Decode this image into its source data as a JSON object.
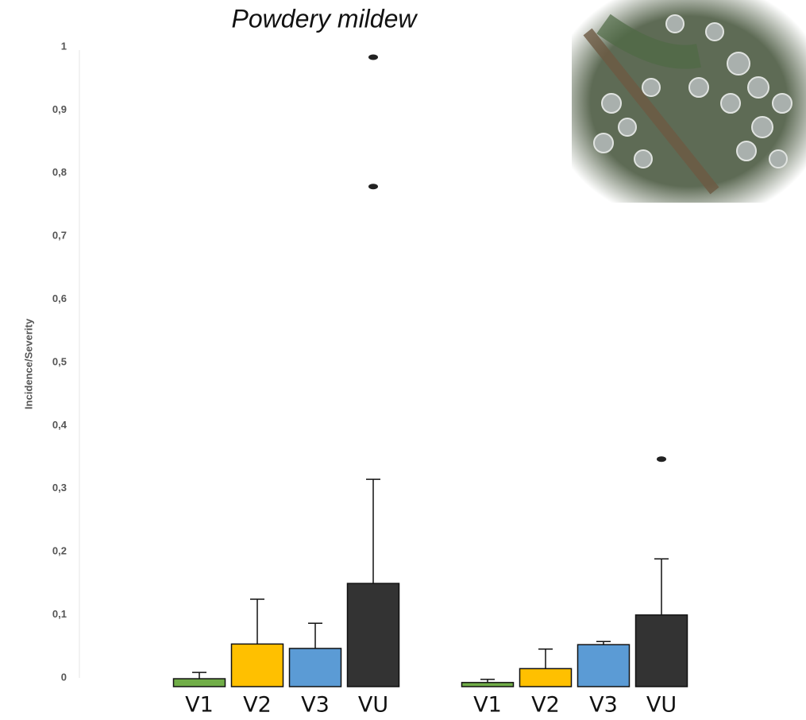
{
  "chart_data": {
    "type": "bar",
    "title": "Powdery mildew",
    "y_label": "Incidence/Severity",
    "ylim": [
      0,
      1
    ],
    "yticks": [
      0,
      {
        "value": 0.1,
        "label": "0,1"
      },
      {
        "value": 0.2,
        "label": "0,2"
      },
      {
        "value": 0.3,
        "label": "0,3"
      },
      {
        "value": 0.4,
        "label": "0,4"
      },
      {
        "value": 0.5,
        "label": "0,5"
      },
      {
        "value": 0.6,
        "label": "0,6"
      },
      {
        "value": 0.7,
        "label": "0,7"
      },
      {
        "value": 0.8,
        "label": "0,8"
      },
      {
        "value": 0.9,
        "label": "0,9"
      },
      1
    ],
    "colors": [
      "#70ad47",
      "#ffc000",
      "#5b9bd5",
      "#333333"
    ],
    "groups": [
      {
        "categories": [
          "V1",
          "V2",
          "V3",
          "VU"
        ],
        "values": [
          0.01,
          0.065,
          0.058,
          0.161
        ],
        "errors": [
          0.01,
          0.071,
          0.04,
          0.165
        ],
        "outliers": [
          [],
          [],
          [],
          [
            0.995,
            0.79
          ]
        ]
      },
      {
        "categories": [
          "V1",
          "V2",
          "V3",
          "VU"
        ],
        "values": [
          0.004,
          0.026,
          0.064,
          0.111
        ],
        "errors": [
          0.005,
          0.031,
          0.005,
          0.089
        ],
        "outliers": [
          [],
          [],
          [],
          [
            0.358
          ]
        ]
      }
    ]
  }
}
